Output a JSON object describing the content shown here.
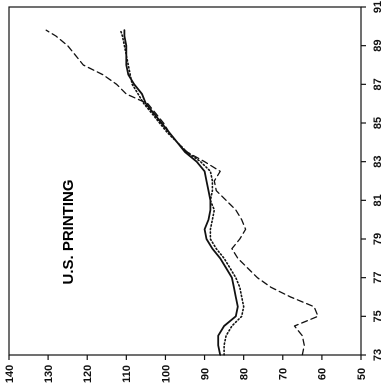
{
  "chart_data": {
    "type": "line",
    "title": "U.S. PRINTING",
    "orientation": "rotated-90-ccw",
    "xlim": [
      73,
      91
    ],
    "ylim": [
      50,
      140
    ],
    "x_ticks": [
      73,
      75,
      77,
      79,
      81,
      83,
      85,
      87,
      89,
      91
    ],
    "y_ticks": [
      50,
      60,
      70,
      80,
      90,
      100,
      110,
      120,
      130,
      140
    ],
    "grid": false,
    "legend": "none",
    "series": [
      {
        "style": "solid",
        "x": [
          73.0,
          73.5,
          74.0,
          74.5,
          75.0,
          75.5,
          76.0,
          76.5,
          77.0,
          77.5,
          78.0,
          78.5,
          79.0,
          79.5,
          80.0,
          80.5,
          81.0,
          81.5,
          82.0,
          82.5,
          83.0,
          83.5,
          84.0,
          84.5,
          85.0,
          85.5,
          86.0,
          86.5,
          87.0,
          87.5,
          88.0,
          88.5,
          89.0,
          89.5,
          89.8
        ],
        "values": [
          86.0,
          86.5,
          86.5,
          85.0,
          82.0,
          81.5,
          82.0,
          82.5,
          83.0,
          84.5,
          86.0,
          88.0,
          89.5,
          90.0,
          89.0,
          88.5,
          88.5,
          89.0,
          89.5,
          90.0,
          92.0,
          95.0,
          97.0,
          99.0,
          101.0,
          103.0,
          105.0,
          106.0,
          108.0,
          109.5,
          110.0,
          110.0,
          110.0,
          110.5,
          110.5
        ]
      },
      {
        "style": "dotted",
        "x": [
          73.0,
          73.5,
          74.0,
          74.5,
          75.0,
          75.5,
          76.0,
          76.5,
          77.0,
          77.5,
          78.0,
          78.5,
          79.0,
          79.5,
          80.0,
          80.5,
          81.0,
          81.5,
          82.0,
          82.5,
          83.0,
          83.5,
          84.0,
          84.5,
          85.0,
          85.5,
          86.0,
          86.5,
          87.0,
          87.5,
          88.0,
          88.5,
          89.0,
          89.5,
          89.8
        ],
        "values": [
          85.0,
          85.0,
          84.5,
          83.0,
          80.5,
          80.0,
          80.5,
          81.0,
          82.0,
          83.5,
          85.0,
          87.0,
          88.5,
          88.5,
          88.0,
          87.5,
          88.5,
          88.0,
          88.0,
          88.5,
          91.0,
          94.5,
          97.0,
          99.5,
          101.5,
          103.5,
          105.5,
          107.0,
          108.5,
          109.0,
          109.5,
          110.0,
          110.5,
          111.0,
          111.5
        ]
      },
      {
        "style": "dashed",
        "x": [
          73.0,
          73.5,
          74.0,
          74.5,
          75.0,
          75.5,
          76.0,
          76.5,
          77.0,
          77.5,
          78.0,
          78.5,
          79.0,
          79.5,
          80.0,
          80.5,
          81.0,
          81.5,
          82.0,
          82.5,
          83.0,
          83.5,
          84.0,
          84.5,
          85.0,
          85.5,
          86.0,
          86.5,
          87.0,
          87.5,
          88.0,
          88.5,
          89.0,
          89.5,
          89.8
        ],
        "values": [
          65.0,
          64.5,
          65.0,
          67.0,
          61.0,
          62.0,
          68.0,
          73.0,
          76.5,
          79.0,
          81.5,
          83.0,
          81.0,
          79.5,
          80.5,
          82.0,
          84.5,
          87.0,
          87.5,
          86.0,
          90.0,
          94.5,
          97.0,
          99.0,
          100.5,
          102.5,
          104.5,
          110.0,
          112.5,
          116.0,
          121.0,
          123.0,
          125.0,
          128.0,
          130.5
        ]
      }
    ]
  }
}
